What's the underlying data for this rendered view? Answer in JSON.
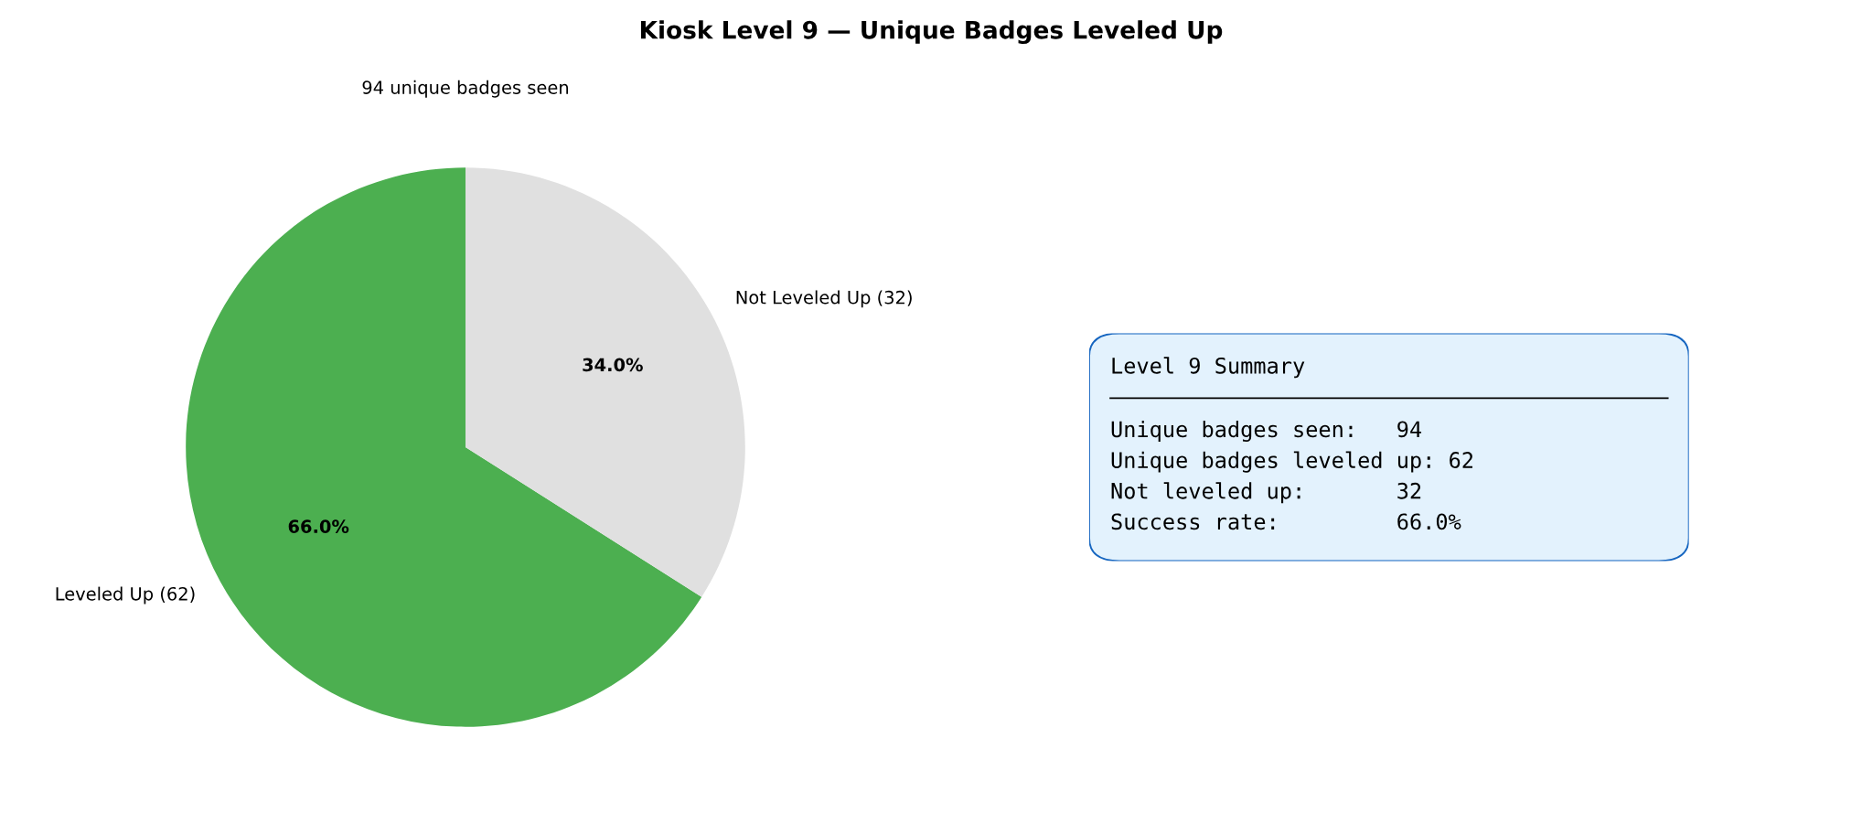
{
  "chart_data": [
    {
      "type": "pie",
      "title": "Kiosk Level 9 — Unique Badges Leveled Up",
      "subtitle": "94 unique badges seen",
      "categories": [
        "Leveled Up (62)",
        "Not Leveled Up (32)"
      ],
      "values": [
        66.0,
        34.0
      ],
      "colors": [
        "#4caf50",
        "#e0e0e0"
      ],
      "value_labels": [
        "66.0%",
        "34.0%"
      ],
      "legend": false
    },
    {
      "type": "other",
      "title": "Level 9 Summary",
      "annotations": [
        "Unique badges seen:   94",
        "Unique badges leveled up: 62",
        "Not leveled up:       32",
        "Success rate:         66.0%"
      ]
    }
  ]
}
